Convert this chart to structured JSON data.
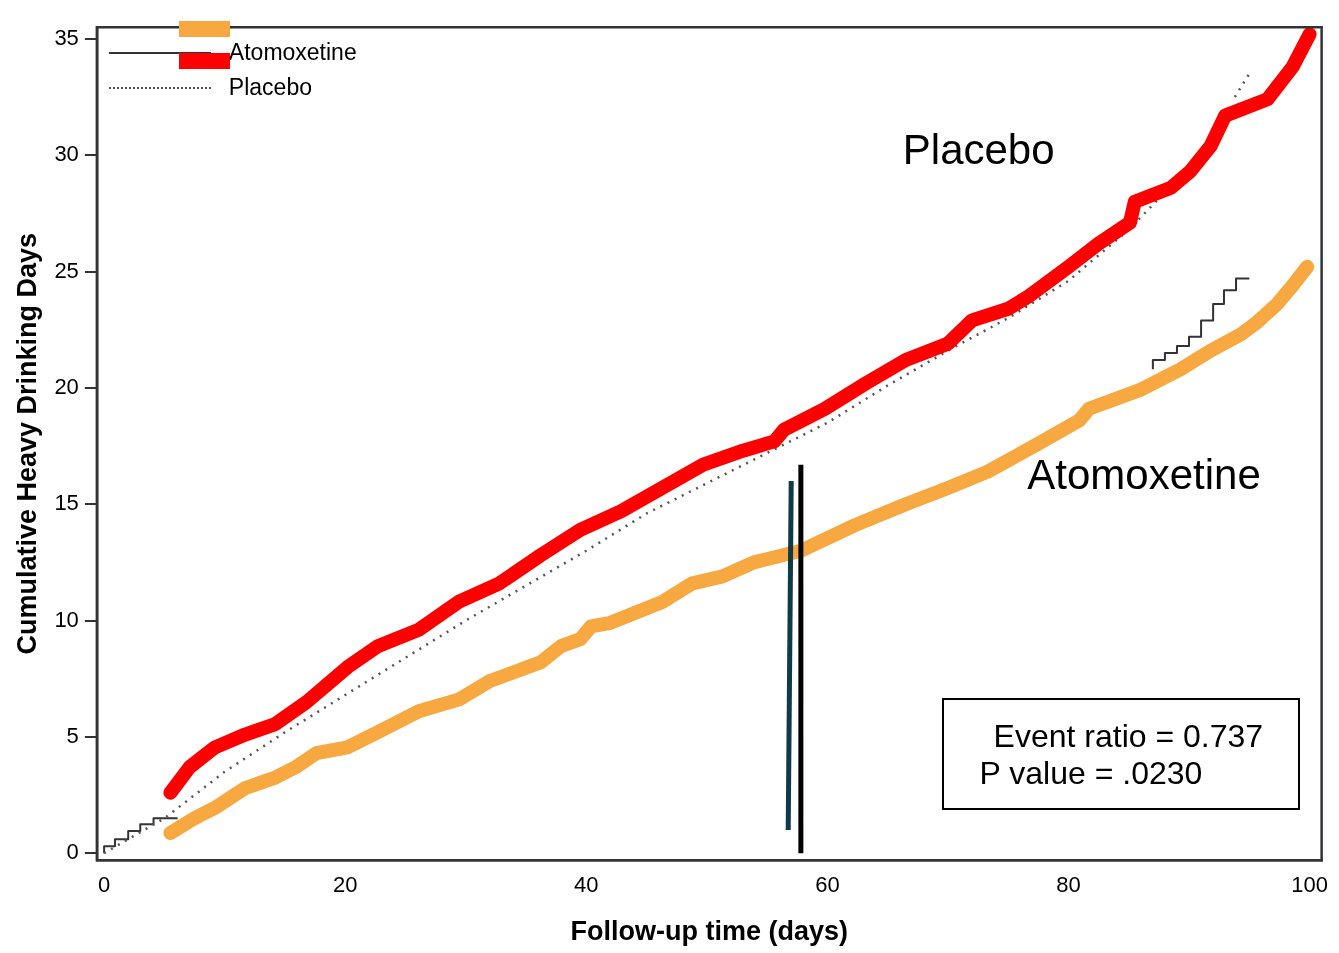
{
  "chart_data": {
    "type": "line",
    "xlabel": "Follow-up time (days)",
    "ylabel": "Cumulative Heavy Drinking Days",
    "xlim": [
      -0.6,
      101
    ],
    "ylim": [
      -0.3,
      35.5
    ],
    "xticks": [
      0,
      20,
      40,
      60,
      80,
      100
    ],
    "yticks": [
      0,
      5,
      10,
      15,
      20,
      25,
      30,
      35
    ],
    "grid": false,
    "legend": "top left",
    "marker": "none",
    "series": [
      {
        "name": "Atomoxetine",
        "type": "step",
        "color": "#333333",
        "line_style": "solid",
        "x": [
          0,
          0.9,
          2.0,
          3.0,
          4.1,
          6.1,
          7,
          87.0,
          88.0,
          89.0,
          90.0,
          91.0,
          92.0,
          92.9,
          93.9,
          95.0
        ],
        "values": [
          0,
          0.3,
          0.6,
          0.95,
          1.25,
          1.5,
          null,
          20.8,
          21.2,
          21.5,
          21.8,
          22.2,
          22.9,
          23.6,
          24.2,
          24.7
        ]
      },
      {
        "name": "Placebo",
        "type": "line",
        "color": "#555555",
        "line_style": "dotted",
        "x": [
          0,
          1,
          5,
          10,
          15,
          20,
          25,
          30,
          35,
          40,
          45,
          50,
          55,
          60,
          65,
          70,
          75,
          80,
          85,
          88,
          90,
          92,
          93.8,
          95
        ],
        "values": [
          0,
          0.3,
          1.5,
          3.5,
          5.2,
          6.8,
          8.4,
          10.0,
          11.5,
          13.0,
          14.6,
          15.9,
          17.2,
          18.5,
          20.1,
          21.6,
          23.0,
          24.6,
          26.8,
          28.4,
          null,
          null,
          32.5,
          33.5
        ]
      },
      {
        "type": "line",
        "color": "#f8a840",
        "line_style": "solid",
        "x": [
          5.5,
          7.5,
          9.2,
          11.7,
          14.2,
          15.9,
          17.6,
          20.2,
          22.7,
          26.1,
          29.4,
          32,
          36.2,
          37.9,
          39.5,
          40.4,
          42,
          46.3,
          48.8,
          51.3,
          53.9,
          57.8,
          62.3,
          66.5,
          70,
          73.3,
          77.5,
          80.9,
          81.7,
          85.9,
          89.3,
          91.8,
          94.3,
          95.6,
          97.3,
          98.6,
          99.8
        ],
        "values": [
          0.87,
          1.5,
          1.95,
          2.8,
          3.25,
          3.7,
          4.3,
          4.55,
          5.2,
          6.1,
          6.6,
          7.4,
          8.2,
          8.9,
          9.2,
          9.75,
          9.9,
          10.8,
          11.6,
          11.9,
          12.5,
          13.0,
          14.1,
          15.0,
          15.7,
          16.4,
          17.6,
          18.6,
          19.1,
          19.9,
          20.8,
          21.6,
          22.3,
          22.8,
          23.6,
          24.4,
          25.2
        ]
      },
      {
        "type": "line",
        "color": "#ff0000",
        "line_style": "solid",
        "x": [
          5.5,
          7.1,
          9.2,
          11.7,
          14.2,
          16.8,
          20.2,
          22.7,
          26.1,
          29.4,
          32.8,
          36.2,
          39.5,
          42.9,
          46.3,
          49.7,
          53,
          55.6,
          56.4,
          59.8,
          63.2,
          66.5,
          70,
          72,
          75,
          76.6,
          80,
          82.5,
          85.1,
          85.5,
          88.5,
          90.1,
          91.8,
          93,
          96.5,
          98.6,
          100
        ],
        "values": [
          2.6,
          3.7,
          4.55,
          5.1,
          5.55,
          6.5,
          8.0,
          8.9,
          9.6,
          10.8,
          11.6,
          12.8,
          13.9,
          14.7,
          15.7,
          16.7,
          17.3,
          17.7,
          18.2,
          19.1,
          20.2,
          21.2,
          21.9,
          22.9,
          23.4,
          23.9,
          25.2,
          26.2,
          27.1,
          28.0,
          28.6,
          29.3,
          30.4,
          31.7,
          32.4,
          33.8,
          35.2
        ]
      },
      {
        "type": "line",
        "color": "#0f3a4a",
        "line_style": "solid",
        "x": [
          56.75,
          57.0
        ],
        "values": [
          1.0,
          16.0
        ]
      },
      {
        "type": "line",
        "color": "#000000",
        "line_style": "solid",
        "x": [
          57.8,
          57.8
        ],
        "values": [
          0,
          16.7
        ]
      }
    ],
    "annotations": [
      "Placebo",
      "Atomoxetine",
      "Event ratio = 0.737",
      "P  value = .0230"
    ]
  }
}
